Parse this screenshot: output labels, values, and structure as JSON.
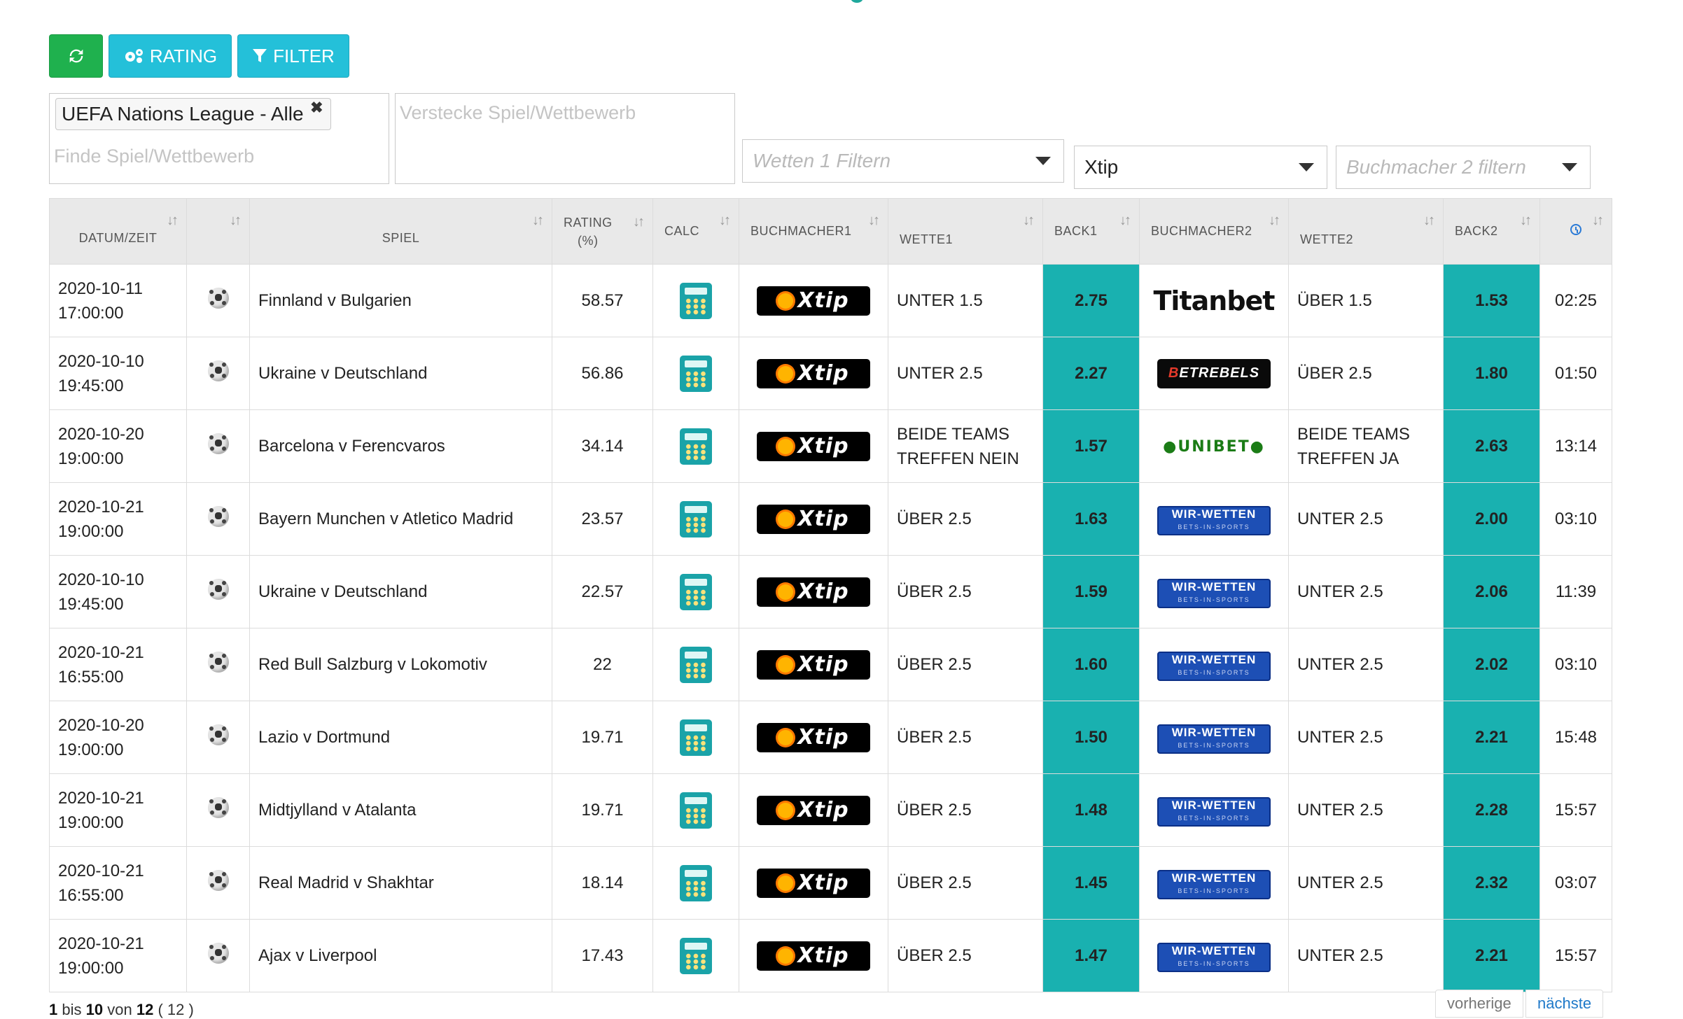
{
  "toolbar": {
    "refresh_icon": "refresh-icon",
    "rating_label": "RATING",
    "filter_label": "FILTER"
  },
  "filters": {
    "tag_label": "UEFA Nations League - Alle",
    "find_placeholder": "Finde Spiel/Wettbewerb",
    "hide_placeholder": "Verstecke Spiel/Wettbewerb",
    "wette1_placeholder": "Wetten 1 Filtern",
    "bookmaker1_value": "Xtip",
    "bookmaker2_placeholder": "Buchmacher 2 filtern"
  },
  "table": {
    "headers": {
      "datum": "DATUM/ZEIT",
      "sport": "",
      "spiel": "SPIEL",
      "rating": "RATING",
      "rating_unit": "(%)",
      "calc": "CALC",
      "buchmacher1": "BUCHMACHER1",
      "wette1": "WETTE1",
      "back1": "BACK1",
      "buchmacher2": "BUCHMACHER2",
      "wette2": "WETTE2",
      "back2": "BACK2"
    },
    "rows": [
      {
        "date": "2020-10-11",
        "time": "17:00:00",
        "spiel": "Finnland v Bulgarien",
        "rating": "58.57",
        "bm1": "Xtip",
        "wette1": "UNTER 1.5",
        "back1": "2.75",
        "bm2": "Titanbet",
        "wette2": "ÜBER 1.5",
        "back2": "1.53",
        "age": "02:25"
      },
      {
        "date": "2020-10-10",
        "time": "19:45:00",
        "spiel": "Ukraine v Deutschland",
        "rating": "56.86",
        "bm1": "Xtip",
        "wette1": "UNTER 2.5",
        "back1": "2.27",
        "bm2": "BetRebels",
        "wette2": "ÜBER 2.5",
        "back2": "1.80",
        "age": "01:50"
      },
      {
        "date": "2020-10-20",
        "time": "19:00:00",
        "spiel": "Barcelona v Ferencvaros",
        "rating": "34.14",
        "bm1": "Xtip",
        "wette1": "BEIDE TEAMS TREFFEN NEIN",
        "back1": "1.57",
        "bm2": "Unibet",
        "wette2": "BEIDE TEAMS TREFFEN JA",
        "back2": "2.63",
        "age": "13:14"
      },
      {
        "date": "2020-10-21",
        "time": "19:00:00",
        "spiel": "Bayern Munchen v Atletico Madrid",
        "rating": "23.57",
        "bm1": "Xtip",
        "wette1": "ÜBER 2.5",
        "back1": "1.63",
        "bm2": "Wir-Wetten",
        "wette2": "UNTER 2.5",
        "back2": "2.00",
        "age": "03:10"
      },
      {
        "date": "2020-10-10",
        "time": "19:45:00",
        "spiel": "Ukraine v Deutschland",
        "rating": "22.57",
        "bm1": "Xtip",
        "wette1": "ÜBER 2.5",
        "back1": "1.59",
        "bm2": "Wir-Wetten",
        "wette2": "UNTER 2.5",
        "back2": "2.06",
        "age": "11:39"
      },
      {
        "date": "2020-10-21",
        "time": "16:55:00",
        "spiel": "Red Bull Salzburg v Lokomotiv",
        "rating": "22",
        "bm1": "Xtip",
        "wette1": "ÜBER 2.5",
        "back1": "1.60",
        "bm2": "Wir-Wetten",
        "wette2": "UNTER 2.5",
        "back2": "2.02",
        "age": "03:10"
      },
      {
        "date": "2020-10-20",
        "time": "19:00:00",
        "spiel": "Lazio v Dortmund",
        "rating": "19.71",
        "bm1": "Xtip",
        "wette1": "ÜBER 2.5",
        "back1": "1.50",
        "bm2": "Wir-Wetten",
        "wette2": "UNTER 2.5",
        "back2": "2.21",
        "age": "15:48"
      },
      {
        "date": "2020-10-21",
        "time": "19:00:00",
        "spiel": "Midtjylland v Atalanta",
        "rating": "19.71",
        "bm1": "Xtip",
        "wette1": "ÜBER 2.5",
        "back1": "1.48",
        "bm2": "Wir-Wetten",
        "wette2": "UNTER 2.5",
        "back2": "2.28",
        "age": "15:57"
      },
      {
        "date": "2020-10-21",
        "time": "16:55:00",
        "spiel": "Real Madrid v Shakhtar",
        "rating": "18.14",
        "bm1": "Xtip",
        "wette1": "ÜBER 2.5",
        "back1": "1.45",
        "bm2": "Wir-Wetten",
        "wette2": "UNTER 2.5",
        "back2": "2.32",
        "age": "03:07"
      },
      {
        "date": "2020-10-21",
        "time": "19:00:00",
        "spiel": "Ajax v Liverpool",
        "rating": "17.43",
        "bm1": "Xtip",
        "wette1": "ÜBER 2.5",
        "back1": "1.47",
        "bm2": "Wir-Wetten",
        "wette2": "UNTER 2.5",
        "back2": "2.21",
        "age": "15:57"
      }
    ]
  },
  "footer": {
    "from": "1",
    "bis": "bis",
    "to": "10",
    "von": "von",
    "total": "12",
    "total_paren": "( 12 )",
    "prev_label": "vorherige",
    "next_label": "nächste"
  },
  "colors": {
    "accent_green": "#1fb14e",
    "accent_cyan": "#24c0d9",
    "teal_cell": "#19b1b0"
  }
}
